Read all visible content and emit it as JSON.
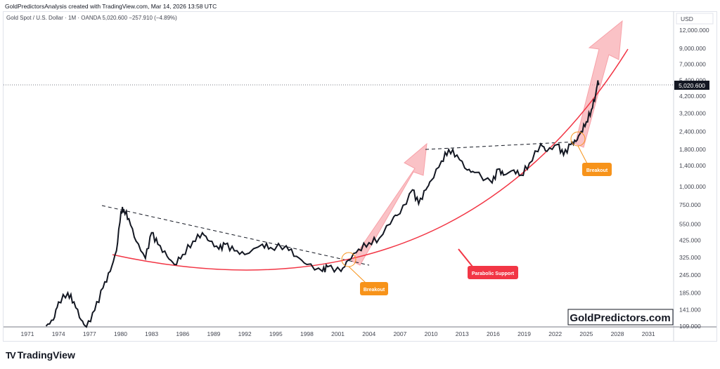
{
  "header": "GoldPredictorsAnalysis created with TradingView.com, Mar 14, 2026 13:58 UTC",
  "legend": "Gold Spot / U.S. Dollar · 1M · OANDA  5,020.600  −257.910 (−4.89%)",
  "currency": "USD",
  "last_price_label": "5,020.600",
  "watermark": "GoldPredictors.com",
  "brand": "TradingView",
  "annotations": {
    "breakout1": "Breakout",
    "breakout2": "Breakout",
    "support": "Parabolic Support"
  },
  "colors": {
    "line": "#131722",
    "support": "#f23645",
    "arrow": "#f7a1a8",
    "label_orange": "#f7931a",
    "label_red": "#f23645"
  },
  "chart_data": {
    "type": "line",
    "title": "Gold Spot / U.S. Dollar · 1M · OANDA",
    "yscale": "log",
    "ylim": [
      109,
      12000
    ],
    "x_ticks": [
      "1971",
      "1974",
      "1977",
      "1980",
      "1983",
      "1986",
      "1989",
      "1992",
      "1995",
      "1998",
      "2001",
      "2004",
      "2007",
      "2010",
      "2013",
      "2016",
      "2019",
      "2022",
      "2025",
      "2028",
      "2031"
    ],
    "y_ticks": [
      "12,000.000",
      "9,000.000",
      "7,000.000",
      "5,400.000",
      "4,200.000",
      "3,200.000",
      "2,400.000",
      "1,800.000",
      "1,400.000",
      "1,000.000",
      "750.000",
      "550.000",
      "425.000",
      "325.000",
      "245.000",
      "185.000",
      "141.000",
      "109.000"
    ],
    "y_tick_values": [
      12000,
      9000,
      7000,
      5400,
      4200,
      3200,
      2400,
      1800,
      1400,
      1000,
      750,
      550,
      425,
      325,
      245,
      185,
      141,
      109
    ],
    "series": [
      {
        "name": "Gold",
        "x": [
          1972.8,
          1973.5,
          1974.0,
          1974.9,
          1975.5,
          1976.2,
          1976.7,
          1977.5,
          1978.3,
          1979.0,
          1979.6,
          1980.05,
          1980.3,
          1980.8,
          1981.5,
          1982.4,
          1983.0,
          1983.6,
          1984.5,
          1985.2,
          1986.0,
          1987.0,
          1987.9,
          1988.6,
          1989.5,
          1990.1,
          1991.0,
          1992.0,
          1993.7,
          1994.5,
          1996.0,
          1997.0,
          1998.0,
          1999.5,
          2000.0,
          2001.3,
          2002.0,
          2003.0,
          2004.0,
          2005.0,
          2006.4,
          2007.0,
          2008.2,
          2008.8,
          2009.5,
          2010.0,
          2011.0,
          2011.7,
          2012.5,
          2013.5,
          2014.2,
          2015.9,
          2016.5,
          2017.0,
          2018.0,
          2018.7,
          2019.5,
          2020.6,
          2021.2,
          2022.2,
          2022.8,
          2023.5,
          2024.0,
          2024.5,
          2025.0,
          2025.5,
          2025.9,
          2026.1,
          2026.2
        ],
        "y": [
          109,
          120,
          160,
          185,
          160,
          120,
          106,
          140,
          200,
          260,
          360,
          680,
          700,
          600,
          420,
          320,
          480,
          400,
          330,
          290,
          340,
          420,
          480,
          420,
          370,
          400,
          360,
          340,
          400,
          380,
          390,
          330,
          290,
          260,
          280,
          260,
          310,
          370,
          410,
          440,
          620,
          650,
          950,
          760,
          950,
          1100,
          1500,
          1800,
          1650,
          1300,
          1250,
          1060,
          1320,
          1200,
          1300,
          1200,
          1450,
          1970,
          1750,
          1950,
          1650,
          1950,
          2050,
          2400,
          2800,
          3400,
          4300,
          5300,
          5020
        ]
      }
    ]
  }
}
